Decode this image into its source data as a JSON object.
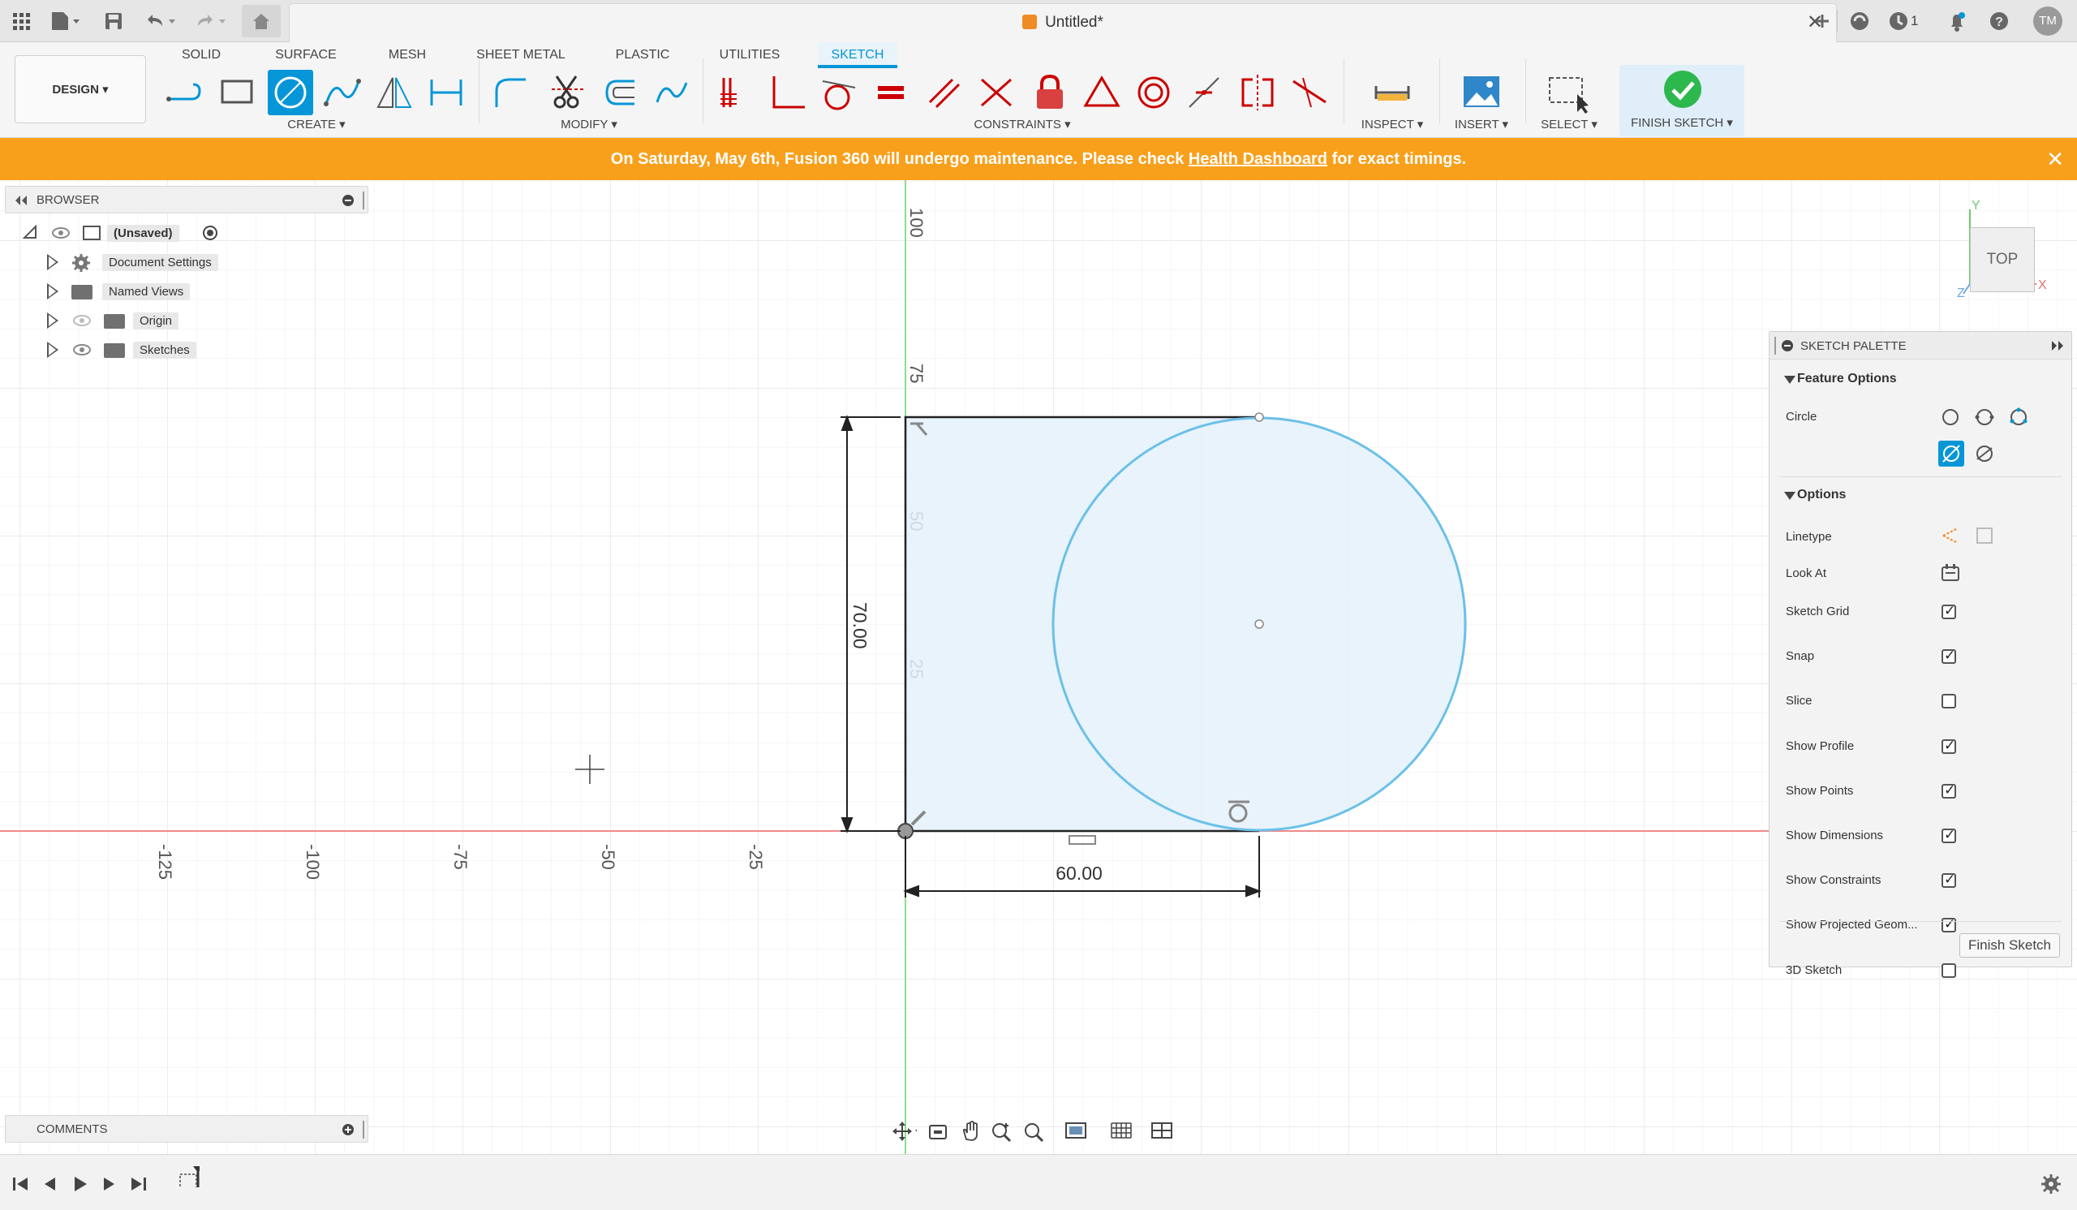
{
  "window": {
    "doc_title": "Untitled*",
    "user_initials": "TM",
    "notifications_count": "1"
  },
  "toolbar": {
    "workspace": "DESIGN ▾",
    "tabs": [
      "SOLID",
      "SURFACE",
      "MESH",
      "SHEET METAL",
      "PLASTIC",
      "UTILITIES",
      "SKETCH"
    ],
    "active_tab": "SKETCH",
    "groups": {
      "create": "CREATE ▾",
      "modify": "MODIFY ▾",
      "constraints": "CONSTRAINTS ▾",
      "inspect": "INSPECT ▾",
      "insert": "INSERT ▾",
      "select": "SELECT ▾",
      "finish": "FINISH SKETCH ▾"
    }
  },
  "banner": {
    "text_before": "On Saturday, May 6th, Fusion 360 will undergo maintenance. Please check ",
    "link": "Health Dashboard",
    "text_after": " for exact timings.",
    "close": "✕"
  },
  "browser": {
    "title": "BROWSER",
    "root": "(Unsaved)",
    "items": [
      {
        "label": "Document Settings",
        "icon": "gear-icon"
      },
      {
        "label": "Named Views",
        "icon": "folder-icon"
      },
      {
        "label": "Origin",
        "icon": "folder-icon"
      },
      {
        "label": "Sketches",
        "icon": "folder-icon"
      }
    ]
  },
  "comments": {
    "title": "COMMENTS"
  },
  "viewcube": {
    "face": "TOP",
    "axis_x": "X",
    "axis_y": "Y",
    "axis_z": "Z"
  },
  "canvas": {
    "ruler_h": [
      "-125",
      "-100",
      "-75",
      "-50",
      "-25"
    ],
    "ruler_v": [
      "100",
      "75",
      "50",
      "25"
    ],
    "dim_width": "60.00",
    "dim_height": "70.00"
  },
  "palette": {
    "title": "SKETCH PALETTE",
    "feature_options": "Feature Options",
    "circle_label": "Circle",
    "options": "Options",
    "linetype": "Linetype",
    "look_at": "Look At",
    "checks": [
      {
        "label": "Sketch Grid",
        "checked": true
      },
      {
        "label": "Snap",
        "checked": true
      },
      {
        "label": "Slice",
        "checked": false
      },
      {
        "label": "Show Profile",
        "checked": true
      },
      {
        "label": "Show Points",
        "checked": true
      },
      {
        "label": "Show Dimensions",
        "checked": true
      },
      {
        "label": "Show Constraints",
        "checked": true
      },
      {
        "label": "Show Projected Geom...",
        "checked": true
      },
      {
        "label": "3D Sketch",
        "checked": false
      }
    ],
    "finish_button": "Finish Sketch"
  },
  "colors": {
    "accent": "#0696d7",
    "banner": "#f8a01c",
    "finish_green": "#2db84d",
    "profile_fill": "#e4f1fa",
    "sketch_line": "#6cc0e8",
    "x_axis": "#f08a8a",
    "y_axis": "#8fdc8f"
  }
}
